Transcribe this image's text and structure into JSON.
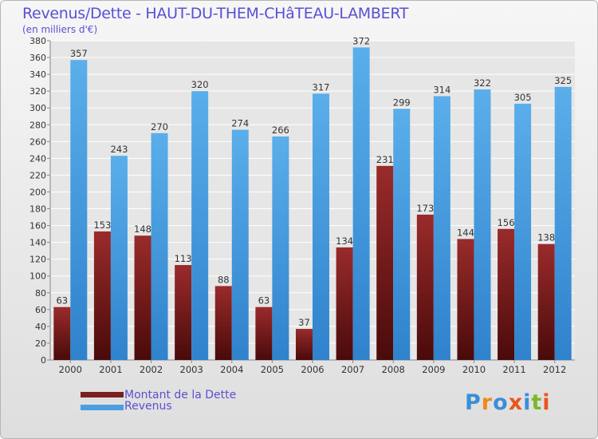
{
  "chart_data": {
    "type": "bar",
    "title": "Revenus/Dette - HAUT-DU-THEM-CHâTEAU-LAMBERT",
    "subtitle": "(en milliers d'€)",
    "categories": [
      "2000",
      "2001",
      "2002",
      "2003",
      "2004",
      "2005",
      "2006",
      "2007",
      "2008",
      "2009",
      "2010",
      "2011",
      "2012"
    ],
    "series": [
      {
        "name": "Montant de la Dette",
        "values": [
          63,
          153,
          148,
          113,
          88,
          63,
          37,
          134,
          231,
          173,
          144,
          156,
          138
        ],
        "color": "#7b1f1f"
      },
      {
        "name": "Revenus",
        "values": [
          357,
          243,
          270,
          320,
          274,
          266,
          317,
          372,
          299,
          314,
          322,
          305,
          325
        ],
        "color": "#4a9fe0"
      }
    ],
    "ylim": [
      0,
      380
    ],
    "ytick_step": 20,
    "grid": true,
    "legend": "bottom-left"
  },
  "logo": {
    "text": "Proxiti",
    "letters": [
      "P",
      "r",
      "o",
      "x",
      "i",
      "t",
      "i"
    ],
    "colors": [
      "#3a8fd6",
      "#f08a1c",
      "#3a8fd6",
      "#e8561c",
      "#3a8fd6",
      "#7ab82e",
      "#e8561c"
    ]
  }
}
